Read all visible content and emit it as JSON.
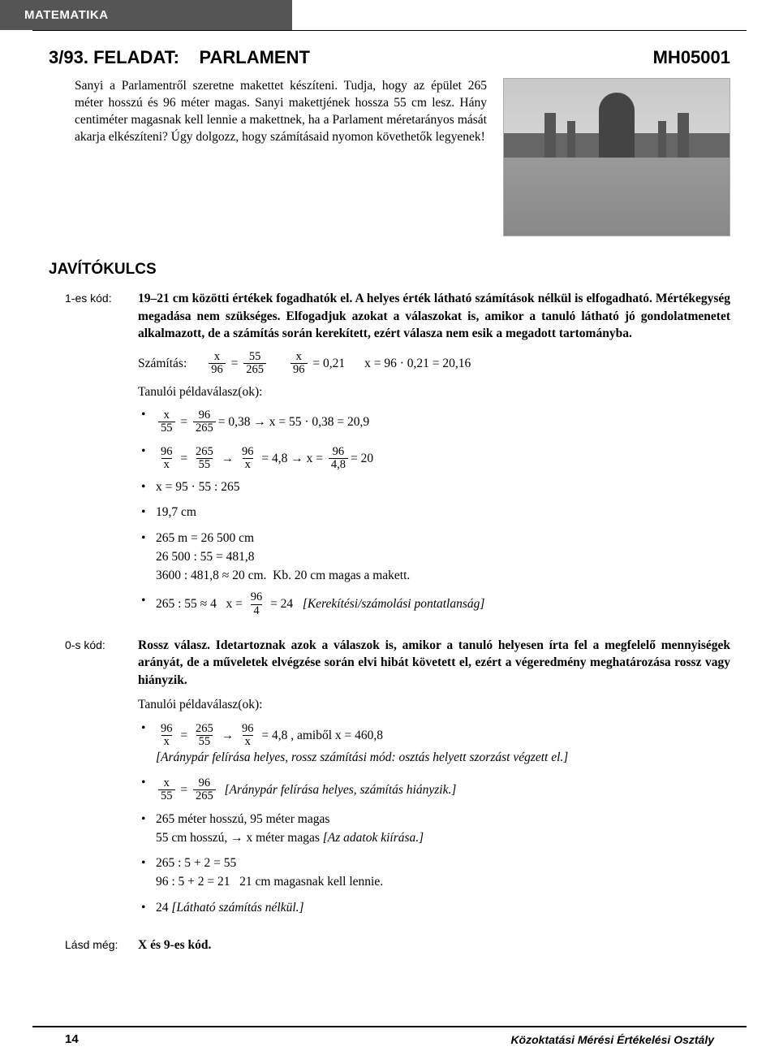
{
  "header": {
    "subject": "MATEMATIKA"
  },
  "title": {
    "task_number": "3/93.",
    "feladat_label": "FELADAT:",
    "name": "PARLAMENT",
    "code": "MH05001"
  },
  "task": {
    "paragraph": "Sanyi a Parlamentről szeretne makettet készíteni. Tudja, hogy az épület 265 méter hosszú és 96 méter magas. Sanyi makettjének hossza 55 cm lesz. Hány centiméter magasnak kell lennie a makettnek, ha a Parlament méretarányos mását akarja elkészíteni? Úgy dolgozz, hogy számításaid nyomon követhetők legyenek!"
  },
  "key_heading": "JAVÍTÓKULCS",
  "code1": {
    "label": "1-es kód:",
    "bold_text": "19–21 cm közötti értékek fogadhatók el. A helyes érték látható számítások nélkül is elfogadható. Mértékegység megadása nem szükséges. Elfogadjuk azokat a válaszokat is, amikor a tanuló látható jó gondolatmenetet alkalmazott, de a számítás során kerekített, ezért válasza nem esik a megadott tartományba.",
    "szamitas_label": "Számítás:",
    "calc_main_frac1_num": "x",
    "calc_main_frac1_den": "96",
    "calc_main_frac2_num": "55",
    "calc_main_frac2_den": "265",
    "calc_main_frac3_num": "x",
    "calc_main_frac3_den": "96",
    "calc_main_eq1": "= 0,21",
    "calc_main_eq2": "x = 96 · 0,21 = 20,16",
    "examples_label": "Tanulói példaválasz(ok):",
    "b1_f1_num": "x",
    "b1_f1_den": "55",
    "b1_f2_num": "96",
    "b1_f2_den": "265",
    "b1_rest": "= 0,38 → x = 55 · 0,38 = 20,9",
    "b2_f1_num": "96",
    "b2_f1_den": "x",
    "b2_f2_num": "265",
    "b2_f2_den": "55",
    "b2_f3_num": "96",
    "b2_f3_den": "x",
    "b2_mid": "= 4,8 → x =",
    "b2_f4_num": "96",
    "b2_f4_den": "4,8",
    "b2_end": "= 20",
    "b3": "x = 95 · 55 : 265",
    "b4": "19,7 cm",
    "b5_l1": "265 m = 26 500 cm",
    "b5_l2": "26 500 : 55 = 481,8",
    "b5_l3": "3600 : 481,8 ≈ 20 cm.  Kb. 20 cm magas a makett.",
    "b6_pre": "265 : 55 ≈ 4   x =",
    "b6_f_num": "96",
    "b6_f_den": "4",
    "b6_post": "= 24",
    "b6_note": "[Kerekítési/számolási pontatlanság]"
  },
  "code0": {
    "label": "0-s kód:",
    "bold_text": "Rossz válasz. Idetartoznak azok a válaszok is, amikor a tanuló helyesen írta fel a megfelelő mennyiségek arányát, de a műveletek elvégzése során elvi hibát követett el, ezért a végeredmény meghatározása rossz vagy hiányzik.",
    "examples_label": "Tanulói példaválasz(ok):",
    "b1_f1_num": "96",
    "b1_f1_den": "x",
    "b1_f2_num": "265",
    "b1_f2_den": "55",
    "b1_f3_num": "96",
    "b1_f3_den": "x",
    "b1_mid": "= 4,8 , amiből x = 460,8",
    "b1_note": "[Aránypár felírása helyes, rossz számítási mód: osztás helyett szorzást végzett el.]",
    "b2_f1_num": "x",
    "b2_f1_den": "55",
    "b2_f2_num": "96",
    "b2_f2_den": "265",
    "b2_note": "[Aránypár felírása helyes, számítás hiányzik.]",
    "b3_l1": "265 méter hosszú, 95 méter magas",
    "b3_l2_a": "55 cm hosszú, → x méter magas ",
    "b3_l2_b": "[Az adatok kiírása.]",
    "b4_l1": "265 : 5 + 2 = 55",
    "b4_l2": "96 : 5 + 2 = 21   21 cm magasnak kell lennie.",
    "b5_a": "24 ",
    "b5_b": "[Látható számítás nélkül.]"
  },
  "see_also": {
    "label": "Lásd még:",
    "text": "X és 9-es kód."
  },
  "footer": {
    "page": "14",
    "org": "Közoktatási Mérési Értékelési Osztály"
  }
}
